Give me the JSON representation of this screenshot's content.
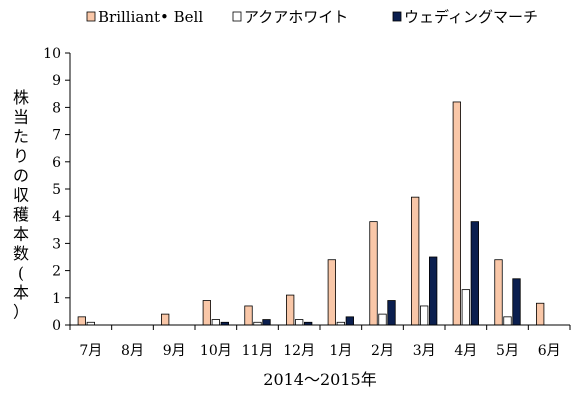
{
  "chart_data": {
    "type": "bar",
    "title": "",
    "xlabel": "2014～2015年",
    "ylabel": "株当たりの収穫本数(本）",
    "ylim": [
      0,
      10
    ],
    "yticks": [
      0,
      1,
      2,
      3,
      4,
      5,
      6,
      7,
      8,
      9,
      10
    ],
    "legend_position": "top",
    "grid": false,
    "categories": [
      "7月",
      "8月",
      "9月",
      "10月",
      "11月",
      "12月",
      "1月",
      "2月",
      "3月",
      "4月",
      "5月",
      "6月"
    ],
    "series": [
      {
        "name": "Brilliant• Bell",
        "color": "#f9c7a8",
        "values": [
          0.3,
          0,
          0.4,
          0.9,
          0.7,
          1.1,
          2.4,
          3.8,
          4.7,
          8.2,
          2.4,
          0.8
        ]
      },
      {
        "name": "アクアホワイト",
        "color": "#ffffff",
        "values": [
          0.1,
          0,
          0,
          0.2,
          0.1,
          0.2,
          0.1,
          0.4,
          0.7,
          1.3,
          0.3,
          0
        ]
      },
      {
        "name": "ウェディングマーチ",
        "color": "#0b1f4f",
        "values": [
          0,
          0,
          0,
          0.1,
          0.2,
          0.1,
          0.3,
          0.9,
          2.5,
          3.8,
          1.7,
          0
        ]
      }
    ]
  }
}
